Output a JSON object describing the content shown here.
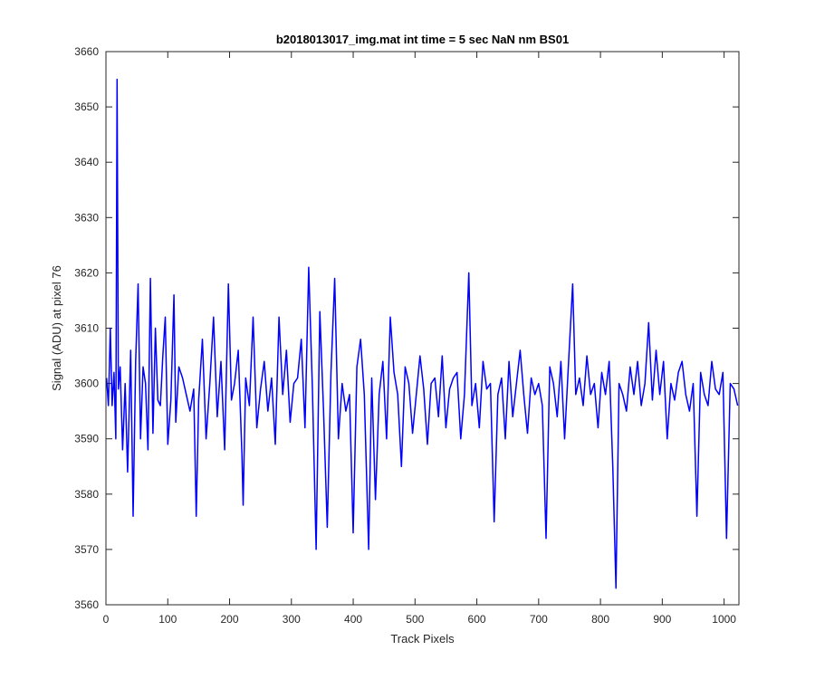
{
  "chart_data": {
    "type": "line",
    "title": "b2018013017_img.mat int time = 5 sec  NaN nm BS01",
    "xlabel": "Track Pixels",
    "ylabel": "Signal (ADU) at pixel 76",
    "xlim": [
      0,
      1024
    ],
    "ylim": [
      3560,
      3660
    ],
    "xticks": [
      0,
      100,
      200,
      300,
      400,
      500,
      600,
      700,
      800,
      900,
      1000
    ],
    "yticks": [
      3560,
      3570,
      3580,
      3590,
      3600,
      3610,
      3620,
      3630,
      3640,
      3650,
      3660
    ],
    "grid": false,
    "series": [
      {
        "color": "#0000ff",
        "description": "noisy signal trace over 1024 track pixels, baseline near 3597 ADU, spike to 3655 at x≈18, minimum 3563 at x≈825",
        "x": [
          1,
          4,
          7,
          10,
          13,
          16,
          18,
          20,
          23,
          27,
          31,
          35,
          40,
          44,
          48,
          52,
          56,
          60,
          64,
          68,
          72,
          76,
          80,
          84,
          88,
          92,
          96,
          100,
          105,
          110,
          113,
          118,
          124,
          130,
          136,
          142,
          146,
          150,
          156,
          162,
          168,
          174,
          180,
          186,
          192,
          198,
          203,
          208,
          214,
          220,
          222,
          226,
          232,
          238,
          244,
          250,
          256,
          262,
          268,
          274,
          280,
          286,
          292,
          298,
          304,
          310,
          316,
          322,
          328,
          334,
          340,
          346,
          352,
          358,
          364,
          370,
          376,
          382,
          388,
          394,
          400,
          406,
          412,
          418,
          425,
          430,
          436,
          442,
          448,
          454,
          460,
          466,
          472,
          478,
          484,
          490,
          496,
          502,
          508,
          514,
          520,
          526,
          532,
          538,
          544,
          550,
          556,
          562,
          568,
          574,
          580,
          587,
          592,
          598,
          604,
          610,
          616,
          622,
          628,
          634,
          640,
          646,
          652,
          658,
          664,
          670,
          676,
          682,
          688,
          694,
          700,
          706,
          712,
          718,
          724,
          730,
          736,
          742,
          748,
          755,
          760,
          766,
          772,
          778,
          784,
          790,
          796,
          802,
          808,
          814,
          820,
          825,
          830,
          836,
          842,
          848,
          854,
          860,
          866,
          872,
          878,
          884,
          890,
          896,
          902,
          908,
          914,
          920,
          926,
          932,
          938,
          944,
          950,
          956,
          962,
          968,
          974,
          980,
          986,
          992,
          998,
          1004,
          1010,
          1016,
          1022
        ],
        "y": [
          3601,
          3596,
          3610,
          3596,
          3602,
          3590,
          3655,
          3599,
          3603,
          3588,
          3600,
          3584,
          3606,
          3576,
          3604,
          3618,
          3590,
          3603,
          3600,
          3588,
          3619,
          3591,
          3610,
          3597,
          3596,
          3605,
          3612,
          3589,
          3597,
          3616,
          3593,
          3603,
          3601,
          3598,
          3595,
          3599,
          3576,
          3597,
          3608,
          3590,
          3600,
          3612,
          3594,
          3604,
          3588,
          3618,
          3597,
          3600,
          3606,
          3587,
          3578,
          3601,
          3596,
          3612,
          3592,
          3599,
          3604,
          3595,
          3601,
          3589,
          3612,
          3598,
          3606,
          3593,
          3600,
          3601,
          3608,
          3592,
          3621,
          3599,
          3570,
          3613,
          3595,
          3574,
          3602,
          3619,
          3590,
          3600,
          3595,
          3598,
          3573,
          3603,
          3608,
          3598,
          3570,
          3601,
          3579,
          3598,
          3604,
          3590,
          3612,
          3602,
          3598,
          3585,
          3603,
          3600,
          3591,
          3598,
          3605,
          3599,
          3589,
          3600,
          3601,
          3594,
          3605,
          3592,
          3599,
          3601,
          3602,
          3590,
          3598,
          3620,
          3596,
          3600,
          3592,
          3604,
          3599,
          3600,
          3575,
          3598,
          3601,
          3590,
          3604,
          3594,
          3600,
          3606,
          3598,
          3591,
          3601,
          3598,
          3600,
          3596,
          3572,
          3603,
          3600,
          3594,
          3604,
          3590,
          3603,
          3618,
          3598,
          3601,
          3596,
          3605,
          3598,
          3600,
          3592,
          3602,
          3598,
          3604,
          3585,
          3563,
          3600,
          3598,
          3595,
          3603,
          3598,
          3604,
          3596,
          3600,
          3611,
          3597,
          3606,
          3598,
          3604,
          3590,
          3600,
          3597,
          3602,
          3604,
          3598,
          3595,
          3600,
          3576,
          3602,
          3598,
          3596,
          3604,
          3599,
          3598,
          3602,
          3572,
          3600,
          3599,
          3596
        ]
      }
    ]
  }
}
